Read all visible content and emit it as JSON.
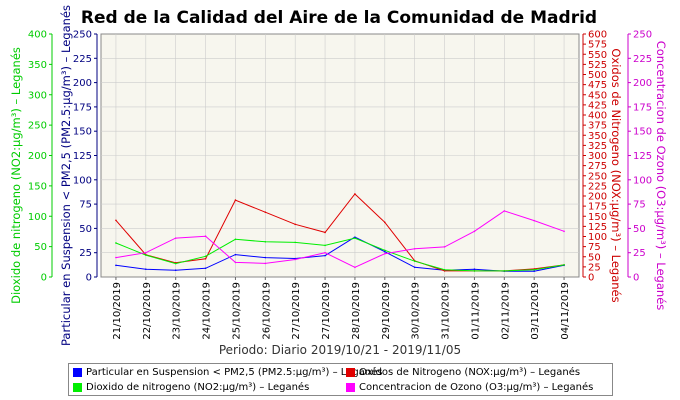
{
  "chart_data": {
    "type": "line",
    "title": "Red de la Calidad del Aire de la Comunidad de Madrid",
    "xlabel": "Periodo: Diario 2019/10/21 - 2019/11/05",
    "categories": [
      "21/10/2019",
      "22/10/2019",
      "23/10/2019",
      "24/10/2019",
      "25/10/2019",
      "26/10/2019",
      "27/10/2019",
      "27/10/2019",
      "28/10/2019",
      "29/10/2019",
      "30/10/2019",
      "31/10/2019",
      "01/11/2019",
      "02/11/2019",
      "03/11/2019",
      "04/11/2019"
    ],
    "axes": [
      {
        "id": "pm25",
        "side": "left-inner",
        "label": "Particular en Suspension < PM2,5 (PM2.5:μg/m³) – Leganés",
        "range": [
          0,
          250
        ],
        "ticks": [
          0,
          25,
          50,
          75,
          100,
          125,
          150,
          175,
          200,
          225,
          250
        ],
        "color": "#000080"
      },
      {
        "id": "no2",
        "side": "left-outer",
        "label": "Dioxido de nitrogeno (NO2:μg/m³) – Leganés",
        "range": [
          0,
          400
        ],
        "ticks": [
          0,
          50,
          100,
          150,
          200,
          250,
          300,
          350,
          400
        ],
        "color": "#00cc00"
      },
      {
        "id": "nox",
        "side": "right-inner",
        "label": "Oxidos de Nitrogeno (NOX:μg/m³) – Leganés",
        "range": [
          0,
          600
        ],
        "ticks": [
          0,
          25,
          50,
          75,
          100,
          125,
          150,
          175,
          200,
          225,
          250,
          275,
          300,
          325,
          350,
          375,
          400,
          425,
          450,
          475,
          500,
          525,
          550,
          575,
          600
        ],
        "color": "#cc0000"
      },
      {
        "id": "o3",
        "side": "right-outer",
        "label": "Concentracion de Ozono (O3:μg/m³) – Leganés",
        "range": [
          0,
          250
        ],
        "ticks": [
          0,
          25,
          50,
          75,
          100,
          125,
          150,
          175,
          200,
          225,
          250
        ],
        "color": "#cc00cc"
      }
    ],
    "series": [
      {
        "name": "Particular en Suspension < PM2,5 (PM2.5:μg/m³) – Leganés",
        "axis": "pm25",
        "color": "#0000ff",
        "values": [
          12,
          8,
          7,
          9,
          23,
          20,
          19,
          22,
          41,
          26,
          10,
          7,
          8,
          6,
          6,
          12
        ]
      },
      {
        "name": "Oxidos de Nitrogeno (NOX:μg/m³) – Leganés",
        "axis": "nox",
        "color": "#e00000",
        "values": [
          140,
          55,
          35,
          45,
          190,
          160,
          130,
          110,
          205,
          135,
          40,
          15,
          15,
          15,
          20,
          30
        ]
      },
      {
        "name": "Dioxido de nitrogeno (NO2:μg/m³) – Leganés",
        "axis": "no2",
        "color": "#00ee00",
        "values": [
          56,
          36,
          22,
          34,
          62,
          58,
          57,
          52,
          64,
          44,
          26,
          12,
          10,
          10,
          12,
          20
        ]
      },
      {
        "name": "Concentracion de Ozono (O3:μg/m³) – Leganés",
        "axis": "o3",
        "color": "#ff00ff",
        "values": [
          20,
          25,
          40,
          42,
          15,
          14,
          18,
          25,
          10,
          24,
          29,
          31,
          47,
          68,
          58,
          47
        ]
      }
    ],
    "legend_placement": "bottom",
    "grid": true
  }
}
